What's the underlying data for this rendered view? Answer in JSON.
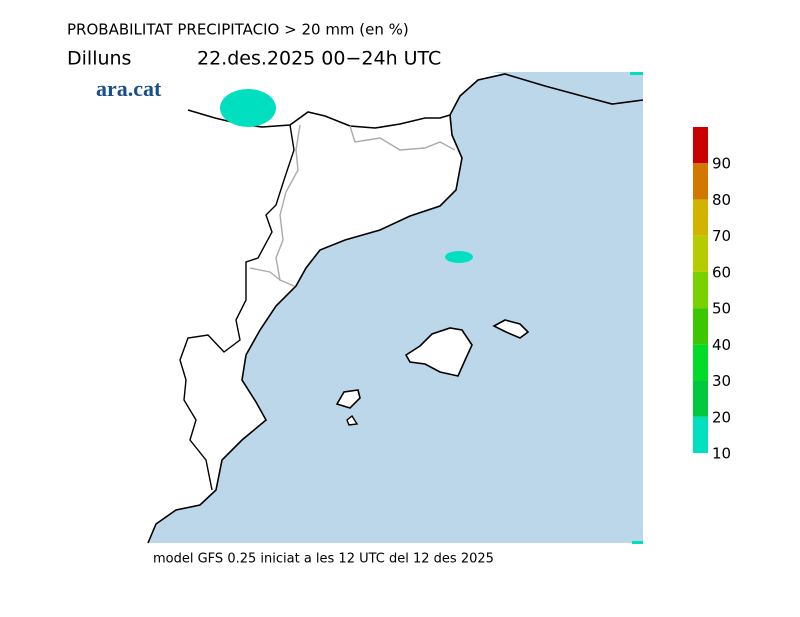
{
  "header": {
    "title": "PROBABILITAT PRECIPITACIO > 20 mm (en %)",
    "day": "Dilluns",
    "period": "22.des.2025 00−24h UTC"
  },
  "logo": "ara.cat",
  "legend": {
    "lim": [
      10,
      100
    ],
    "ticks": [
      10,
      20,
      30,
      40,
      50,
      60,
      70,
      80,
      90
    ],
    "colors": [
      "#00e0c0",
      "#00c83c",
      "#00dc28",
      "#3cc800",
      "#78d200",
      "#b4cc00",
      "#d2b400",
      "#d27800",
      "#c83c00",
      "#c80000"
    ]
  },
  "footer": "model GFS 0.25 iniciat a les 12 UTC del 12 des 2025"
}
